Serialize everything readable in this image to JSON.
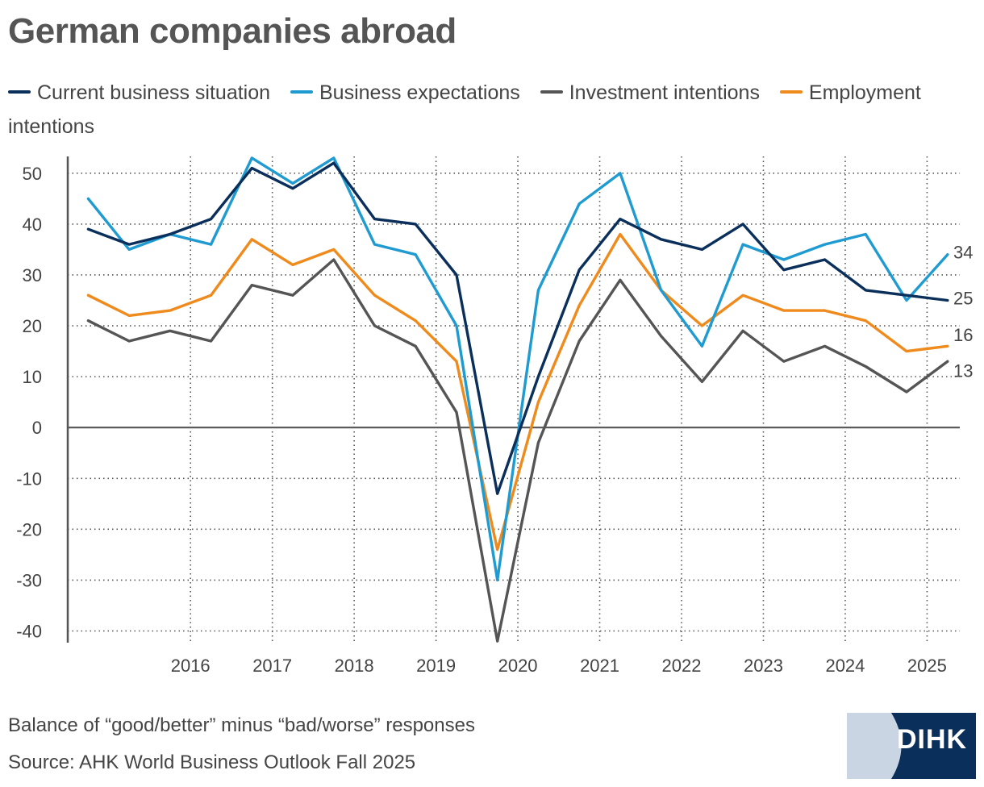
{
  "title": "German companies abroad",
  "note": "Balance of “good/better” minus “bad/worse” responses",
  "source": "Source: AHK World Business Outlook Fall 2025",
  "logo_text": "DIHK",
  "colors": {
    "current": "#0b2f5b",
    "expectations": "#1f9bd1",
    "investment": "#555555",
    "employment": "#ef8a1c",
    "logo_dark": "#0b2f5b",
    "logo_light": "#c9d5e3"
  },
  "chart_data": {
    "type": "line",
    "title": "German companies abroad",
    "ylabel": "",
    "xlabel": "",
    "ylim": [
      -42,
      52
    ],
    "yticks": [
      -40,
      -30,
      -20,
      -10,
      0,
      10,
      20,
      30,
      40,
      50
    ],
    "xticks": [
      "2016",
      "2017",
      "2018",
      "2019",
      "2020",
      "2021",
      "2022",
      "2023",
      "2024",
      "2025"
    ],
    "grid": true,
    "legend_position": "top",
    "x": [
      2015.25,
      2015.75,
      2016.25,
      2016.75,
      2017.25,
      2017.75,
      2018.25,
      2018.75,
      2019.25,
      2019.75,
      2020.25,
      2020.75,
      2021.25,
      2021.75,
      2022.25,
      2022.75,
      2023.25,
      2023.75,
      2024.25,
      2024.75,
      2025.25,
      2025.75
    ],
    "series": [
      {
        "name": "Current business situation",
        "key": "current",
        "values": [
          39,
          36,
          38,
          41,
          51,
          47,
          52,
          41,
          40,
          30,
          -13,
          10,
          31,
          41,
          37,
          35,
          40,
          31,
          33,
          27,
          26,
          25
        ]
      },
      {
        "name": "Business expectations",
        "key": "expectations",
        "values": [
          45,
          35,
          38,
          36,
          53,
          48,
          53,
          36,
          34,
          20,
          -30,
          27,
          44,
          50,
          27,
          16,
          36,
          33,
          36,
          38,
          25,
          34
        ]
      },
      {
        "name": "Investment intentions",
        "key": "investment",
        "values": [
          21,
          17,
          19,
          17,
          28,
          26,
          33,
          20,
          16,
          3,
          -42,
          -3,
          17,
          29,
          18,
          9,
          19,
          13,
          16,
          12,
          7,
          13
        ]
      },
      {
        "name": "Employment intentions",
        "key": "employment",
        "values": [
          26,
          22,
          23,
          26,
          37,
          32,
          35,
          26,
          21,
          13,
          -24,
          5,
          24,
          38,
          27,
          20,
          26,
          23,
          23,
          21,
          15,
          16
        ]
      }
    ],
    "end_labels": [
      "34",
      "25",
      "16",
      "13"
    ]
  }
}
